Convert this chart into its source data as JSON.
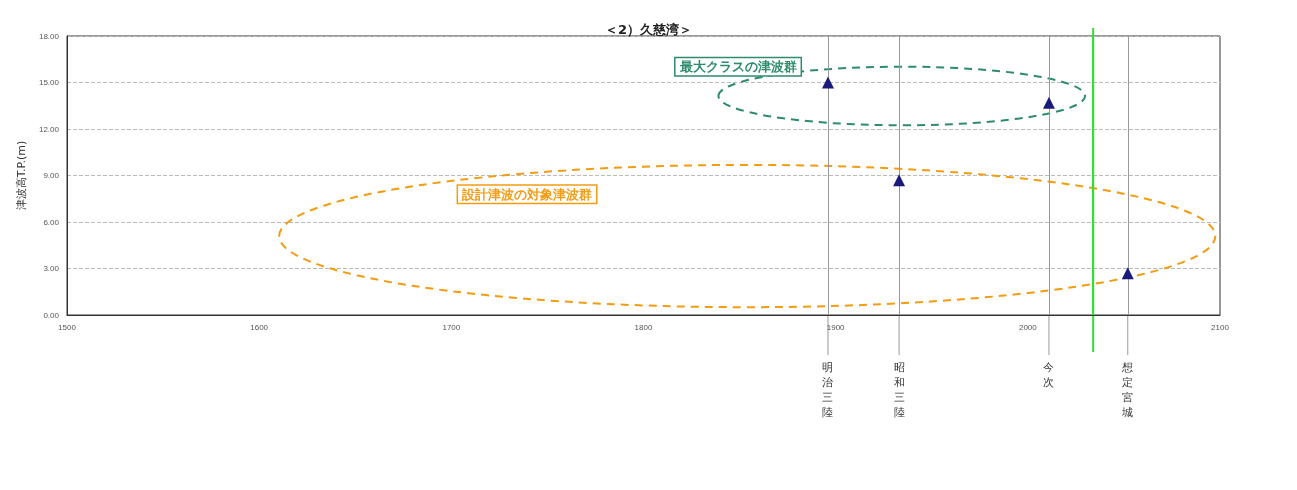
{
  "chart_data": {
    "type": "scatter",
    "title": "＜2）久慈湾＞",
    "ylabel": "津波高T.P.(m)",
    "x": [
      1896,
      1933,
      2011,
      2052
    ],
    "series": [
      {
        "color": "#1a1a7a",
        "values": [
          15.0,
          8.7,
          13.7,
          2.7
        ]
      }
    ],
    "marker": "triangle",
    "xlim": [
      1500,
      2100
    ],
    "xticks": [
      1500,
      1600,
      1700,
      1800,
      1900,
      2000,
      2100
    ],
    "ylim": [
      0,
      18
    ],
    "yticks": [
      {
        "value": 0,
        "label": "0.00"
      },
      {
        "value": 3,
        "label": "3.00"
      },
      {
        "value": 6,
        "label": "6.00"
      },
      {
        "value": 9,
        "label": "9.00"
      },
      {
        "value": 12,
        "label": "12.00"
      },
      {
        "value": 15,
        "label": "15.00"
      },
      {
        "value": 18,
        "label": "18.00"
      }
    ],
    "grid": "y",
    "ref_lines": [
      {
        "axis": "x",
        "value": 1896,
        "label": "明治三陸",
        "color": "#999999"
      },
      {
        "axis": "x",
        "value": 1933,
        "label": "昭和三陸",
        "color": "#999999"
      },
      {
        "axis": "x",
        "value": 2011,
        "label": "今次",
        "color": "#999999"
      },
      {
        "axis": "x",
        "value": 2052,
        "label": "想定宮城",
        "color": "#999999"
      },
      {
        "axis": "x",
        "value": 2034,
        "label": null,
        "color": "#33dd33"
      }
    ],
    "annotations": [
      "最大クラスの津波群",
      "設計津波の対象津波群"
    ]
  }
}
